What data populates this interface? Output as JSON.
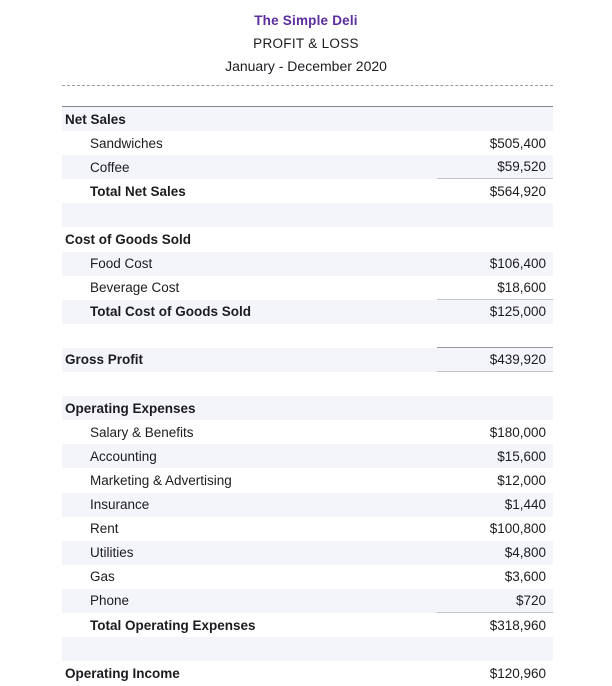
{
  "header": {
    "company": "The Simple Deli",
    "report_title": "PROFIT & LOSS",
    "period": "January - December 2020"
  },
  "colors": {
    "accent": "#5b2d9e",
    "row_alt": "#f4f4fb",
    "rule_dark": "#85858a",
    "rule_light": "#c4c4cb",
    "text": "#1c1c20"
  },
  "table": {
    "rows": [
      {
        "label": "Net Sales",
        "amount": "",
        "type": "section"
      },
      {
        "label": "Sandwiches",
        "amount": "$505,400",
        "type": "item"
      },
      {
        "label": "Coffee",
        "amount": "$59,520",
        "type": "item",
        "underline": "light"
      },
      {
        "label": "Total Net Sales",
        "amount": "$564,920",
        "type": "total"
      },
      {
        "label": "",
        "amount": "",
        "type": "spacer"
      },
      {
        "label": "Cost of Goods Sold",
        "amount": "",
        "type": "section"
      },
      {
        "label": "Food Cost",
        "amount": "$106,400",
        "type": "item"
      },
      {
        "label": "Beverage Cost",
        "amount": "$18,600",
        "type": "item",
        "underline": "light"
      },
      {
        "label": "Total Cost of Goods Sold",
        "amount": "$125,000",
        "type": "total"
      },
      {
        "label": "",
        "amount": "",
        "type": "spacer",
        "underline": "dark"
      },
      {
        "label": "Gross Profit",
        "amount": "$439,920",
        "type": "grand",
        "underline": "light"
      },
      {
        "label": "",
        "amount": "",
        "type": "spacer"
      },
      {
        "label": "Operating Expenses",
        "amount": "",
        "type": "section"
      },
      {
        "label": "Salary & Benefits",
        "amount": "$180,000",
        "type": "item"
      },
      {
        "label": "Accounting",
        "amount": "$15,600",
        "type": "item"
      },
      {
        "label": "Marketing & Advertising",
        "amount": "$12,000",
        "type": "item"
      },
      {
        "label": "Insurance",
        "amount": "$1,440",
        "type": "item"
      },
      {
        "label": "Rent",
        "amount": "$100,800",
        "type": "item"
      },
      {
        "label": "Utilities",
        "amount": "$4,800",
        "type": "item"
      },
      {
        "label": "Gas",
        "amount": "$3,600",
        "type": "item"
      },
      {
        "label": "Phone",
        "amount": "$720",
        "type": "item",
        "underline": "light"
      },
      {
        "label": "Total Operating Expenses",
        "amount": "$318,960",
        "type": "total"
      },
      {
        "label": "",
        "amount": "",
        "type": "spacer"
      },
      {
        "label": "Operating Income",
        "amount": "$120,960",
        "type": "grand"
      }
    ]
  }
}
